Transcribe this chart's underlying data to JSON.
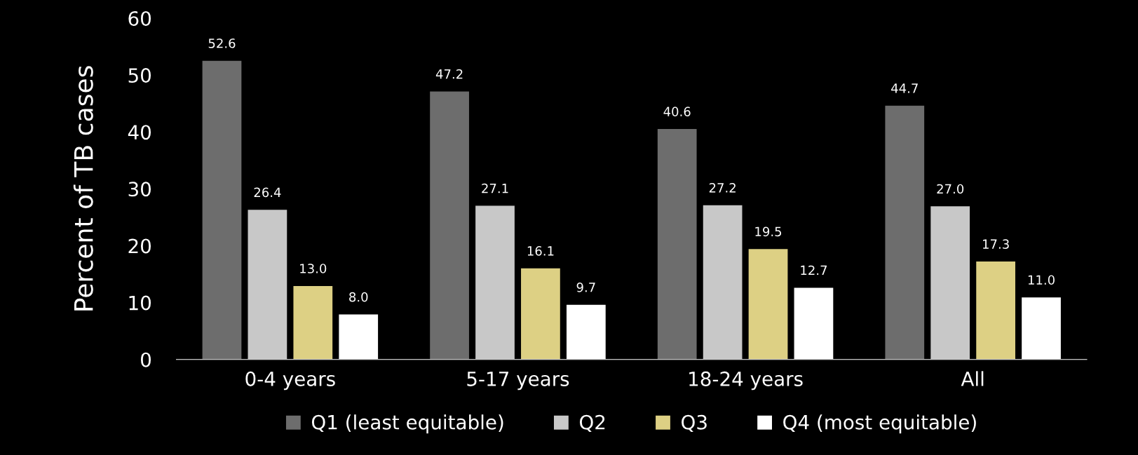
{
  "chart_data": {
    "type": "bar",
    "ylabel": "Percent of TB cases",
    "categories": [
      "0-4 years",
      "5-17 years",
      "18-24 years",
      "All"
    ],
    "series": [
      {
        "name": "Q1 (least equitable)",
        "color": "#6d6d6d",
        "values": [
          52.6,
          47.2,
          40.6,
          44.7
        ],
        "value_labels": [
          "52.6",
          "47.2",
          "40.6",
          "44.7"
        ]
      },
      {
        "name": "Q2",
        "color": "#c8c8c8",
        "values": [
          26.4,
          27.1,
          27.2,
          27.0
        ],
        "value_labels": [
          "26.4",
          "27.1",
          "27.2",
          "27.0"
        ]
      },
      {
        "name": "Q3",
        "color": "#ddd084",
        "values": [
          13.0,
          16.1,
          19.5,
          17.3
        ],
        "value_labels": [
          "13.0",
          "16.1",
          "19.5",
          "17.3"
        ]
      },
      {
        "name": "Q4 (most equitable)",
        "color": "#ffffff",
        "values": [
          8.0,
          9.7,
          12.7,
          11.0
        ],
        "value_labels": [
          "8.0",
          "9.7",
          "12.7",
          "11.0"
        ]
      }
    ],
    "ylim": [
      0,
      60
    ],
    "yticks": [
      0,
      10,
      20,
      30,
      40,
      50,
      60
    ],
    "grid": false,
    "legend": "bottom"
  }
}
